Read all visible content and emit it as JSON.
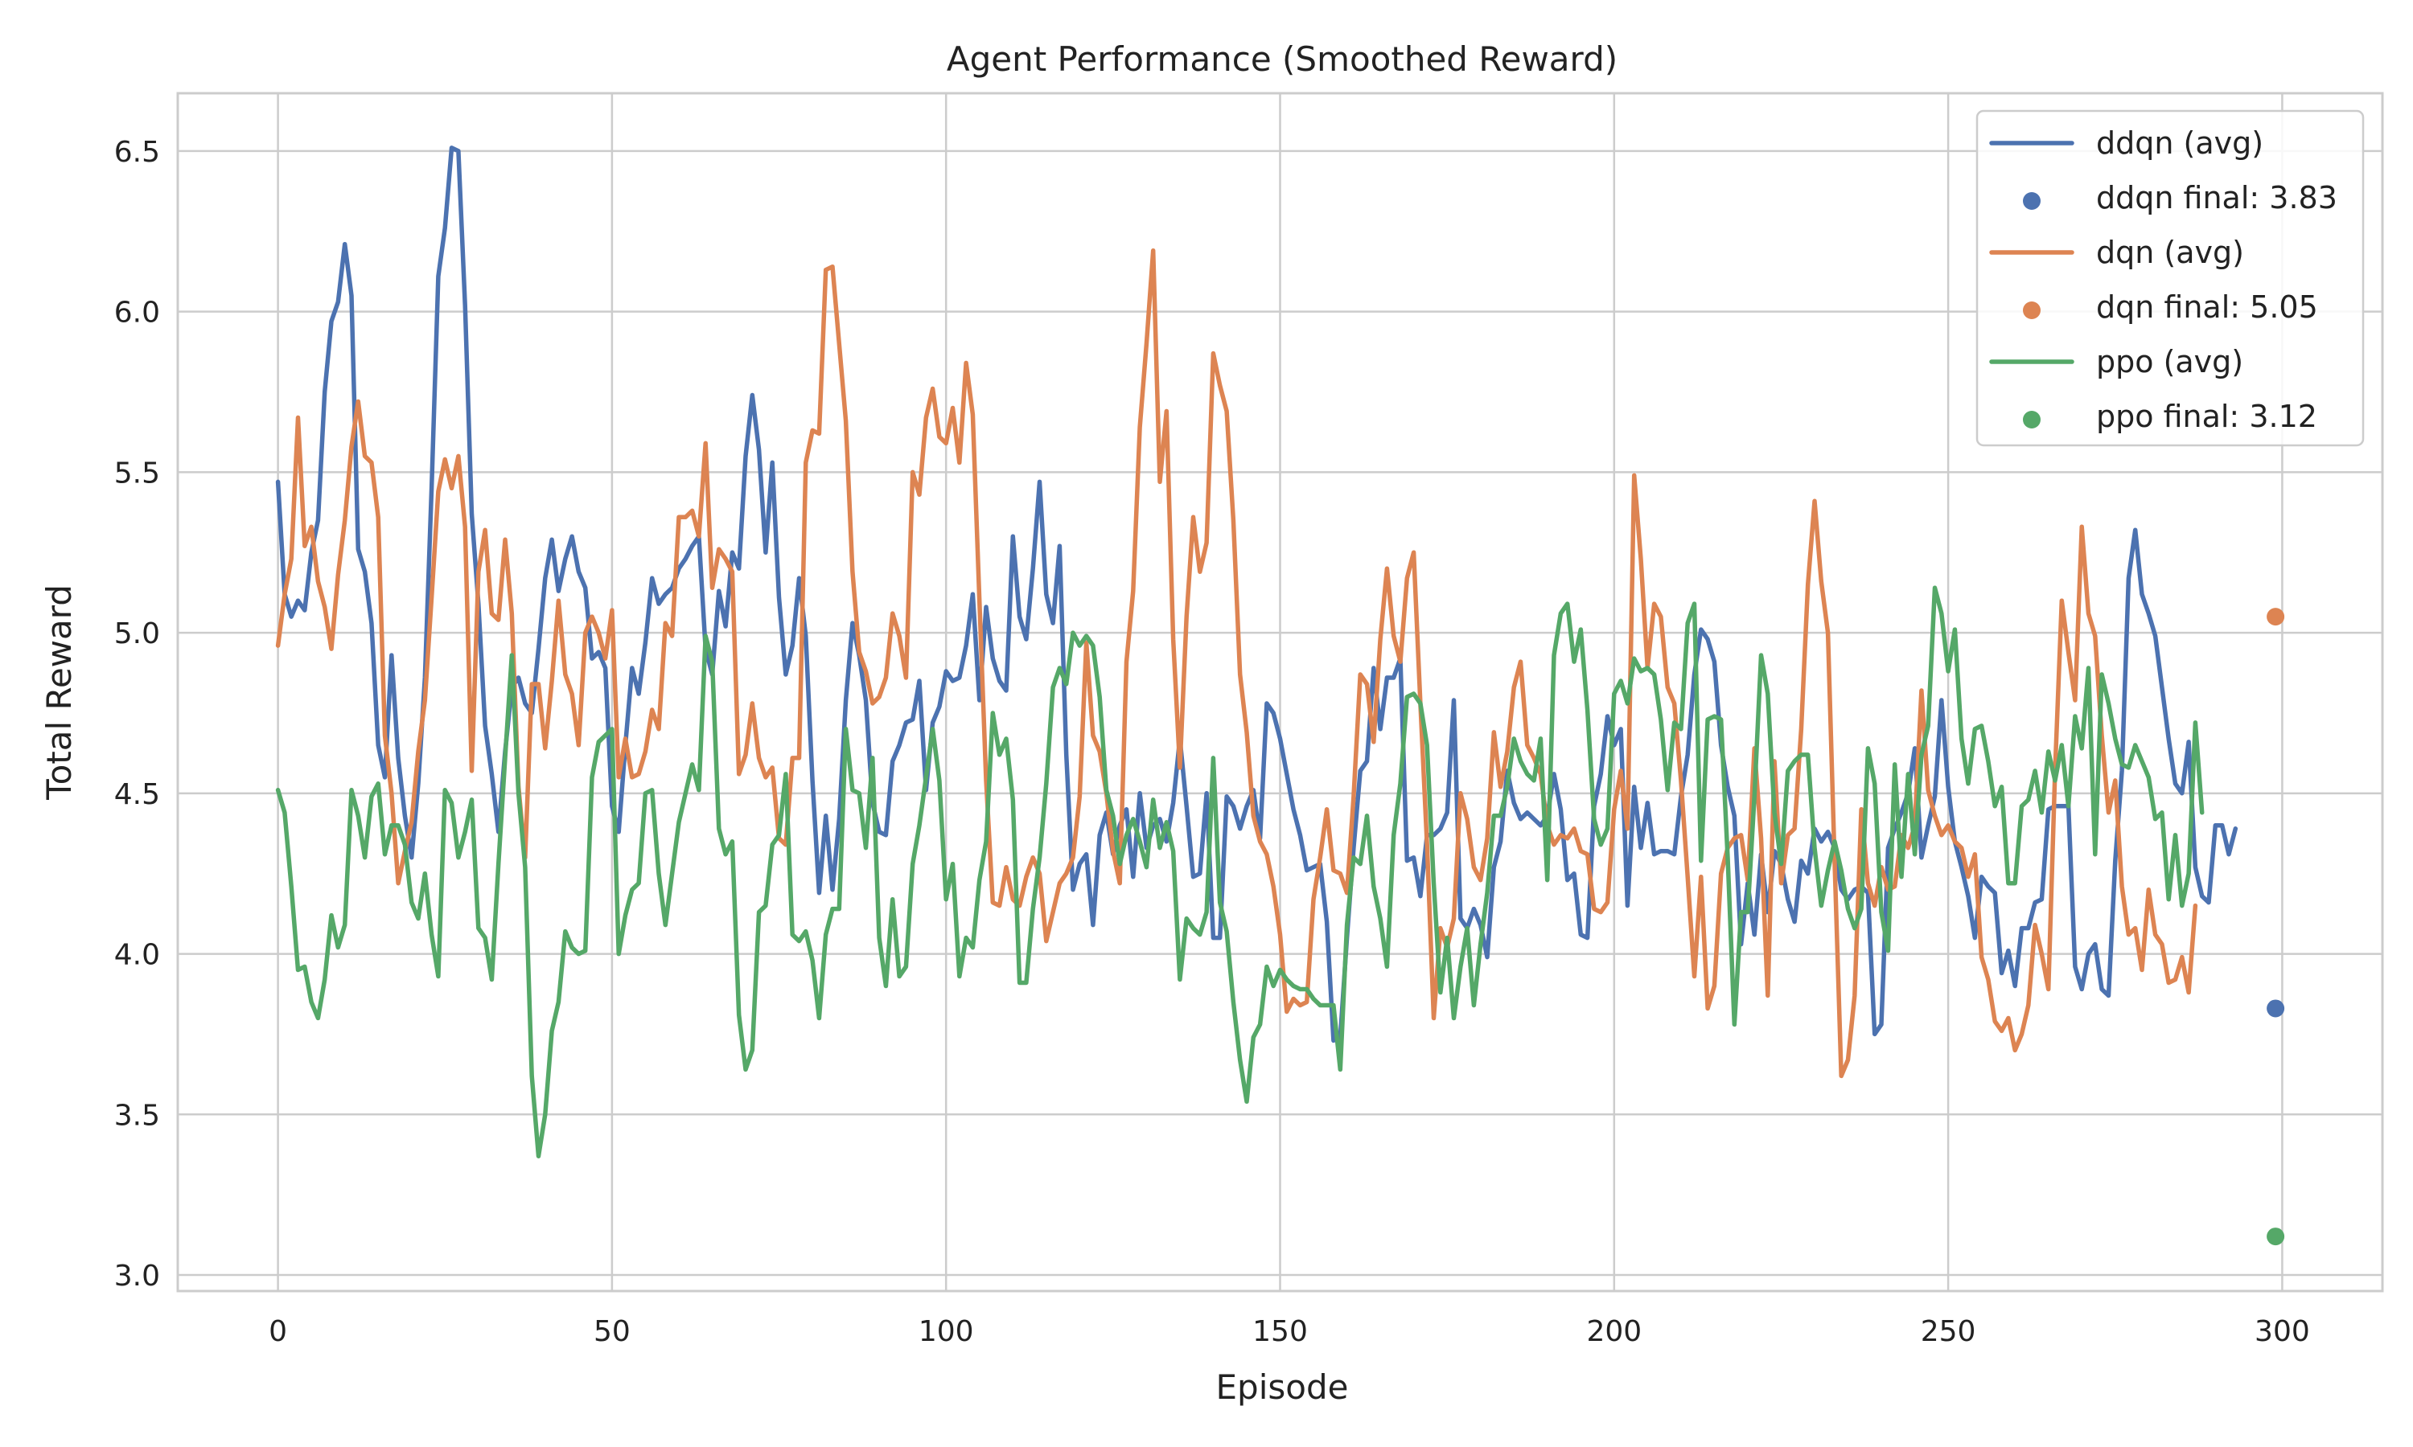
{
  "chart_data": {
    "type": "line",
    "title": "Agent Performance (Smoothed Reward)",
    "xlabel": "Episode",
    "ylabel": "Total Reward",
    "xlim": [
      -15,
      315
    ],
    "ylim": [
      2.95,
      6.68
    ],
    "xticks": [
      0,
      50,
      100,
      150,
      200,
      250,
      300
    ],
    "yticks": [
      3.0,
      3.5,
      4.0,
      4.5,
      5.0,
      5.5,
      6.0,
      6.5
    ],
    "xtick_labels": [
      "0",
      "50",
      "100",
      "150",
      "200",
      "250",
      "300"
    ],
    "ytick_labels": [
      "3.0",
      "3.5",
      "4.0",
      "4.5",
      "5.0",
      "5.5",
      "6.0",
      "6.5"
    ],
    "grid": true,
    "legend_position": "top-right",
    "series": [
      {
        "name": "ddqn (avg)",
        "color": "#4c72b0",
        "x_start": 0,
        "x_step": 1,
        "values": [
          5.47,
          5.12,
          5.05,
          5.1,
          5.07,
          5.25,
          5.35,
          5.75,
          5.97,
          6.03,
          6.21,
          6.05,
          5.26,
          5.19,
          5.03,
          4.65,
          4.55,
          4.93,
          4.61,
          4.43,
          4.3,
          4.53,
          4.86,
          5.45,
          6.11,
          6.26,
          6.51,
          6.5,
          6.02,
          5.37,
          5.09,
          4.71,
          4.56,
          4.38,
          4.63,
          4.83,
          4.86,
          4.78,
          4.75,
          4.95,
          5.17,
          5.29,
          5.13,
          5.23,
          5.3,
          5.19,
          5.14,
          4.92,
          4.94,
          4.89,
          4.46,
          4.38,
          4.65,
          4.89,
          4.81,
          4.97,
          5.17,
          5.09,
          5.12,
          5.14,
          5.2,
          5.23,
          5.27,
          5.3,
          4.95,
          4.87,
          5.13,
          5.02,
          5.25,
          5.2,
          5.55,
          5.74,
          5.57,
          5.25,
          5.53,
          5.11,
          4.87,
          4.96,
          5.17,
          4.99,
          4.54,
          4.19,
          4.43,
          4.2,
          4.42,
          4.79,
          5.03,
          4.93,
          4.79,
          4.47,
          4.38,
          4.37,
          4.6,
          4.65,
          4.72,
          4.73,
          4.85,
          4.51,
          4.72,
          4.77,
          4.88,
          4.85,
          4.86,
          4.96,
          5.12,
          4.79,
          5.08,
          4.92,
          4.85,
          4.82,
          5.3,
          5.05,
          4.98,
          5.2,
          5.47,
          5.12,
          5.03,
          5.27,
          4.62,
          4.2,
          4.28,
          4.31,
          4.09,
          4.37,
          4.44,
          4.31,
          4.4,
          4.45,
          4.24,
          4.5,
          4.33,
          4.4,
          4.42,
          4.35,
          4.47,
          4.67,
          4.46,
          4.24,
          4.25,
          4.5,
          4.05,
          4.05,
          4.49,
          4.46,
          4.39,
          4.46,
          4.51,
          4.36,
          4.78,
          4.75,
          4.67,
          4.56,
          4.45,
          4.37,
          4.26,
          4.27,
          4.28,
          4.1,
          3.73,
          3.74,
          4.05,
          4.33,
          4.57,
          4.6,
          4.89,
          4.7,
          4.86,
          4.86,
          4.92,
          4.29,
          4.3,
          4.18,
          4.37,
          4.37,
          4.39,
          4.44,
          4.79,
          4.11,
          4.08,
          4.14,
          4.09,
          3.99,
          4.27,
          4.35,
          4.57,
          4.47,
          4.42,
          4.44,
          4.42,
          4.4,
          4.43,
          4.56,
          4.45,
          4.23,
          4.25,
          4.06,
          4.05,
          4.46,
          4.56,
          4.74,
          4.65,
          4.7,
          4.15,
          4.52,
          4.33,
          4.47,
          4.31,
          4.32,
          4.32,
          4.31,
          4.49,
          4.62,
          4.87,
          5.01,
          4.98,
          4.91,
          4.65,
          4.52,
          4.43,
          4.03,
          4.22,
          4.06,
          4.31,
          4.13,
          4.32,
          4.28,
          4.17,
          4.1,
          4.29,
          4.25,
          4.39,
          4.35,
          4.38,
          4.33,
          4.2,
          4.17,
          4.2,
          4.21,
          4.19,
          3.75,
          3.78,
          4.33,
          4.39,
          4.44,
          4.5,
          4.64,
          4.3,
          4.4,
          4.49,
          4.79,
          4.52,
          4.35,
          4.27,
          4.18,
          4.05,
          4.24,
          4.21,
          4.19,
          3.94,
          4.01,
          3.9,
          4.08,
          4.08,
          4.16,
          4.17,
          4.45,
          4.46,
          4.46,
          4.46,
          3.96,
          3.89,
          4.0,
          4.03,
          3.89,
          3.87,
          4.29,
          4.57,
          5.17,
          5.32,
          5.12,
          5.06,
          4.99,
          4.83,
          4.67,
          4.53,
          4.5,
          4.66,
          4.27,
          4.18,
          4.16,
          4.4,
          4.4,
          4.31,
          4.39
        ]
      },
      {
        "name": "dqn (avg)",
        "color": "#dd8452",
        "x_start": 0,
        "x_step": 1,
        "values": [
          4.96,
          5.12,
          5.23,
          5.67,
          5.27,
          5.33,
          5.16,
          5.08,
          4.95,
          5.18,
          5.35,
          5.58,
          5.72,
          5.55,
          5.53,
          5.36,
          4.68,
          4.5,
          4.22,
          4.32,
          4.41,
          4.63,
          4.79,
          5.11,
          5.44,
          5.54,
          5.45,
          5.55,
          5.33,
          4.57,
          5.19,
          5.32,
          5.06,
          5.04,
          5.29,
          5.06,
          4.52,
          4.3,
          4.84,
          4.84,
          4.64,
          4.85,
          5.1,
          4.87,
          4.81,
          4.65,
          5.0,
          5.05,
          5.0,
          4.92,
          5.07,
          4.55,
          4.67,
          4.55,
          4.56,
          4.63,
          4.76,
          4.7,
          5.03,
          4.99,
          5.36,
          5.36,
          5.38,
          5.3,
          5.59,
          5.14,
          5.26,
          5.23,
          5.19,
          4.56,
          4.62,
          4.78,
          4.61,
          4.55,
          4.58,
          4.36,
          4.34,
          4.61,
          4.61,
          5.53,
          5.63,
          5.62,
          6.13,
          6.14,
          5.9,
          5.66,
          5.19,
          4.94,
          4.88,
          4.78,
          4.8,
          4.86,
          5.06,
          4.99,
          4.86,
          5.5,
          5.43,
          5.67,
          5.76,
          5.61,
          5.59,
          5.7,
          5.53,
          5.84,
          5.68,
          5.1,
          4.54,
          4.16,
          4.15,
          4.27,
          4.17,
          4.15,
          4.24,
          4.3,
          4.25,
          4.04,
          4.13,
          4.22,
          4.25,
          4.3,
          4.49,
          4.97,
          4.68,
          4.63,
          4.5,
          4.32,
          4.22,
          4.91,
          5.13,
          5.64,
          5.9,
          6.19,
          5.47,
          5.69,
          4.98,
          4.58,
          5.05,
          5.36,
          5.19,
          5.28,
          5.87,
          5.77,
          5.69,
          5.35,
          4.87,
          4.69,
          4.43,
          4.35,
          4.31,
          4.21,
          4.06,
          3.82,
          3.86,
          3.84,
          3.85,
          4.17,
          4.3,
          4.45,
          4.26,
          4.25,
          4.19,
          4.49,
          4.87,
          4.84,
          4.66,
          4.98,
          5.2,
          4.99,
          4.91,
          5.17,
          5.25,
          4.78,
          4.34,
          3.8,
          4.08,
          4.02,
          4.11,
          4.5,
          4.42,
          4.27,
          4.23,
          4.36,
          4.69,
          4.52,
          4.63,
          4.83,
          4.91,
          4.65,
          4.61,
          4.56,
          4.4,
          4.34,
          4.37,
          4.36,
          4.39,
          4.32,
          4.31,
          4.14,
          4.13,
          4.16,
          4.45,
          4.57,
          4.39,
          5.49,
          5.23,
          4.89,
          5.09,
          5.05,
          4.83,
          4.78,
          4.54,
          4.24,
          3.93,
          4.24,
          3.83,
          3.9,
          4.25,
          4.33,
          4.36,
          4.37,
          4.23,
          4.64,
          4.36,
          3.87,
          4.6,
          4.22,
          4.37,
          4.39,
          4.7,
          5.15,
          5.41,
          5.16,
          5.0,
          4.29,
          3.62,
          3.67,
          3.87,
          4.45,
          4.22,
          4.15,
          4.27,
          4.2,
          4.21,
          4.37,
          4.33,
          4.4,
          4.82,
          4.51,
          4.43,
          4.37,
          4.4,
          4.35,
          4.33,
          4.24,
          4.31,
          3.99,
          3.92,
          3.79,
          3.76,
          3.8,
          3.7,
          3.75,
          3.84,
          4.09,
          4.0,
          3.89,
          4.57,
          5.1,
          4.94,
          4.79,
          5.33,
          5.06,
          4.99,
          4.68,
          4.44,
          4.54,
          4.21,
          4.06,
          4.08,
          3.95,
          4.2,
          4.06,
          4.03,
          3.91,
          3.92,
          3.99,
          3.88,
          4.15
        ]
      },
      {
        "name": "ppo (avg)",
        "color": "#55a868",
        "x_start": 0,
        "x_step": 1,
        "values": [
          4.51,
          4.44,
          4.21,
          3.95,
          3.96,
          3.85,
          3.8,
          3.92,
          4.12,
          4.02,
          4.09,
          4.51,
          4.43,
          4.3,
          4.49,
          4.53,
          4.31,
          4.4,
          4.4,
          4.34,
          4.16,
          4.11,
          4.25,
          4.06,
          3.93,
          4.51,
          4.47,
          4.3,
          4.38,
          4.48,
          4.08,
          4.05,
          3.92,
          4.28,
          4.61,
          4.93,
          4.5,
          4.27,
          3.62,
          3.37,
          3.5,
          3.76,
          3.85,
          4.07,
          4.02,
          4.0,
          4.01,
          4.55,
          4.66,
          4.68,
          4.7,
          4.0,
          4.12,
          4.2,
          4.22,
          4.5,
          4.51,
          4.25,
          4.09,
          4.25,
          4.41,
          4.5,
          4.59,
          4.51,
          4.99,
          4.91,
          4.39,
          4.31,
          4.35,
          3.81,
          3.64,
          3.7,
          4.13,
          4.15,
          4.34,
          4.37,
          4.56,
          4.06,
          4.04,
          4.07,
          3.98,
          3.8,
          4.06,
          4.14,
          4.14,
          4.7,
          4.51,
          4.5,
          4.33,
          4.61,
          4.05,
          3.9,
          4.17,
          3.93,
          3.96,
          4.28,
          4.4,
          4.55,
          4.7,
          4.54,
          4.17,
          4.28,
          3.93,
          4.05,
          4.02,
          4.23,
          4.35,
          4.75,
          4.62,
          4.67,
          4.48,
          3.91,
          3.91,
          4.14,
          4.3,
          4.53,
          4.83,
          4.89,
          4.84,
          5.0,
          4.96,
          4.99,
          4.96,
          4.8,
          4.51,
          4.43,
          4.28,
          4.37,
          4.42,
          4.35,
          4.27,
          4.48,
          4.33,
          4.41,
          4.32,
          3.92,
          4.11,
          4.08,
          4.06,
          4.13,
          4.61,
          4.16,
          4.07,
          3.85,
          3.67,
          3.54,
          3.74,
          3.78,
          3.96,
          3.9,
          3.95,
          3.92,
          3.9,
          3.89,
          3.89,
          3.86,
          3.84,
          3.84,
          3.84,
          3.64,
          4.09,
          4.3,
          4.28,
          4.43,
          4.21,
          4.11,
          3.96,
          4.37,
          4.53,
          4.8,
          4.81,
          4.78,
          4.65,
          4.22,
          3.88,
          4.05,
          3.8,
          3.96,
          4.08,
          3.84,
          4.03,
          4.19,
          4.43,
          4.43,
          4.52,
          4.67,
          4.6,
          4.56,
          4.54,
          4.67,
          4.23,
          4.93,
          5.06,
          5.09,
          4.91,
          5.01,
          4.76,
          4.42,
          4.34,
          4.39,
          4.81,
          4.85,
          4.78,
          4.92,
          4.88,
          4.89,
          4.87,
          4.73,
          4.51,
          4.72,
          4.7,
          5.03,
          5.09,
          4.29,
          4.73,
          4.74,
          4.73,
          4.3,
          3.78,
          4.13,
          4.13,
          4.49,
          4.93,
          4.81,
          4.44,
          4.28,
          4.57,
          4.6,
          4.62,
          4.62,
          4.33,
          4.15,
          4.26,
          4.35,
          4.26,
          4.14,
          4.08,
          4.14,
          4.64,
          4.53,
          4.13,
          4.01,
          4.59,
          4.24,
          4.56,
          4.31,
          4.62,
          4.71,
          5.14,
          5.06,
          4.88,
          5.01,
          4.67,
          4.53,
          4.7,
          4.71,
          4.6,
          4.46,
          4.52,
          4.22,
          4.22,
          4.46,
          4.48,
          4.57,
          4.44,
          4.63,
          4.54,
          4.65,
          4.46,
          4.74,
          4.64,
          4.89,
          4.31,
          4.87,
          4.78,
          4.67,
          4.59,
          4.58,
          4.65,
          4.6,
          4.55,
          4.42,
          4.44,
          4.17,
          4.37,
          4.15,
          4.25,
          4.72,
          4.44
        ]
      }
    ],
    "finals": [
      {
        "name": "ddqn final: 3.83",
        "x": 299,
        "y": 3.83,
        "color": "#4c72b0"
      },
      {
        "name": "dqn final: 5.05",
        "x": 299,
        "y": 5.05,
        "color": "#dd8452"
      },
      {
        "name": "ppo final: 3.12",
        "x": 299,
        "y": 3.12,
        "color": "#55a868"
      }
    ],
    "legend": [
      {
        "label": "ddqn (avg)",
        "kind": "line",
        "color": "#4c72b0"
      },
      {
        "label": "ddqn final: 3.83",
        "kind": "marker",
        "color": "#4c72b0"
      },
      {
        "label": "dqn (avg)",
        "kind": "line",
        "color": "#dd8452"
      },
      {
        "label": "dqn final: 5.05",
        "kind": "marker",
        "color": "#dd8452"
      },
      {
        "label": "ppo (avg)",
        "kind": "line",
        "color": "#55a868"
      },
      {
        "label": "ppo final: 3.12",
        "kind": "marker",
        "color": "#55a868"
      }
    ]
  }
}
